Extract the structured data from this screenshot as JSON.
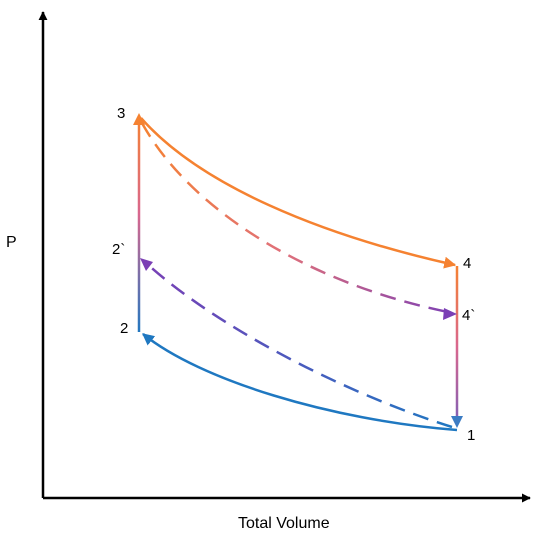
{
  "diagram": {
    "y_axis_label": "P",
    "x_axis_label": "Total Volume",
    "points": {
      "p1": "1",
      "p2": "2",
      "p3": "3",
      "p4": "4",
      "p2_prime": "2`",
      "p4_prime": "4`"
    }
  },
  "colors": {
    "axis": "#000000",
    "orange": "#F58231",
    "blue": "#1F78C1",
    "purple": "#7B3FB5",
    "dashed_pink": "#E0707A"
  }
}
